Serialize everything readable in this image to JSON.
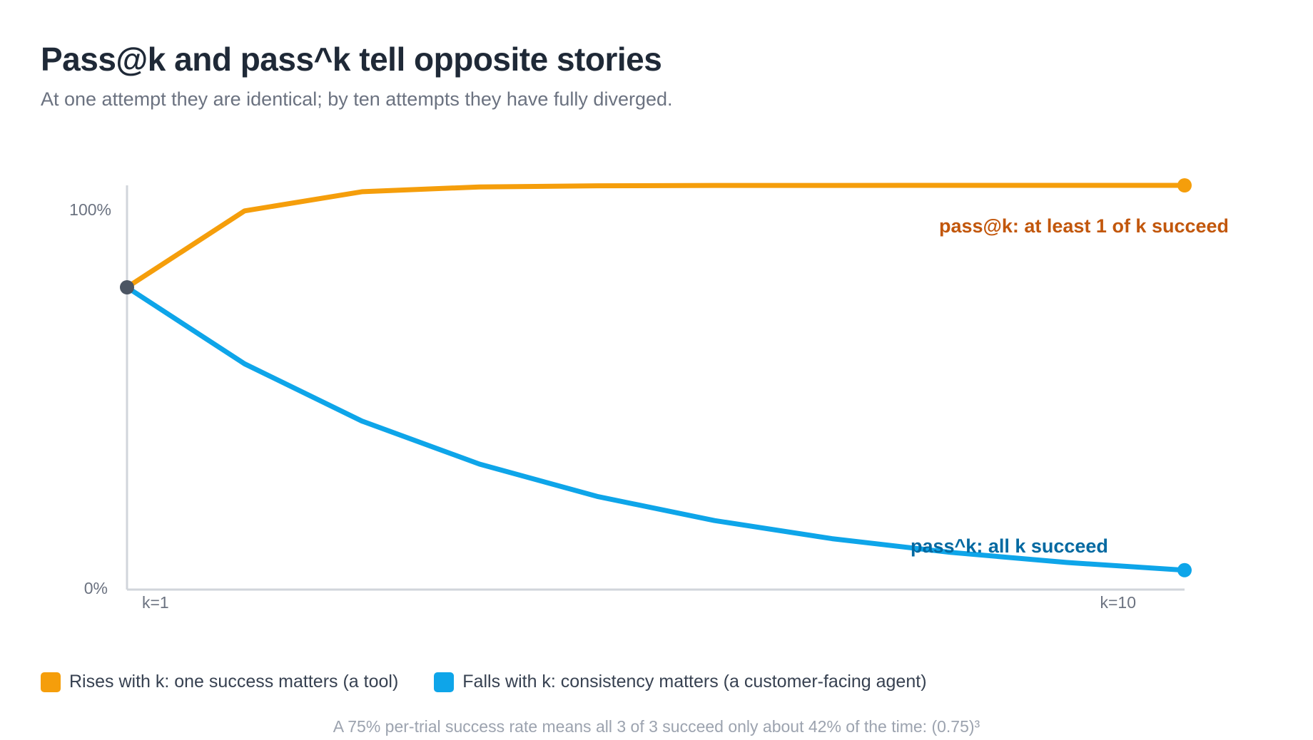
{
  "header": {
    "title": "Pass@k and pass^k tell opposite stories",
    "subtitle": "At one attempt they are identical; by ten attempts they have fully diverged."
  },
  "chart_data": {
    "type": "line",
    "x": [
      1,
      2,
      3,
      4,
      5,
      6,
      7,
      8,
      9,
      10
    ],
    "series": [
      {
        "name": "pass@k: at least 1 of k succeed",
        "color": "#f59e0b",
        "label_color": "#c2570c",
        "values": [
          75,
          93.75,
          98.44,
          99.61,
          99.9,
          99.98,
          99.99,
          100,
          100,
          100
        ]
      },
      {
        "name": "pass^k: all k succeed",
        "color": "#0ea5e9",
        "label_color": "#0369a1",
        "values": [
          75,
          56.25,
          42.19,
          31.64,
          23.73,
          17.8,
          13.35,
          10.01,
          7.51,
          5.63
        ]
      }
    ],
    "y_ticks": [
      "0%",
      "100%"
    ],
    "x_ticks": [
      "k=1",
      "k=10"
    ],
    "ylim": [
      0,
      100
    ],
    "grid": false
  },
  "legend": {
    "items": [
      {
        "label": "Rises with k: one success matters (a tool)",
        "color": "#f59e0b"
      },
      {
        "label": "Falls with k: consistency matters (a customer-facing agent)",
        "color": "#0ea5e9"
      }
    ]
  },
  "footnote": "A 75% per-trial success rate means all 3 of 3 succeed only about 42% of the time: (0.75)³",
  "colors": {
    "axis": "#d1d5db",
    "start_point": "#4b5563",
    "tick_text": "#6b7280"
  }
}
